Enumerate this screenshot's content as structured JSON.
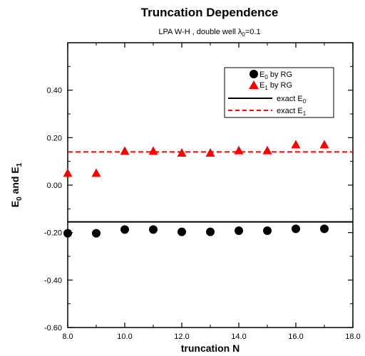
{
  "chart_data": {
    "type": "scatter",
    "title": "Truncation Dependence",
    "subtitle": {
      "prefix": "LPA W-H , double well λ",
      "sub": "0",
      "suffix": "=0.1"
    },
    "xlabel": "truncation N",
    "ylabel": {
      "a": "E",
      "a_sub": "0",
      "mid": " and E",
      "b_sub": "1"
    },
    "xlim": [
      8.0,
      18.0
    ],
    "ylim": [
      -0.6,
      0.6
    ],
    "xticks": [
      "8.0",
      "10.0",
      "12.0",
      "14.0",
      "16.0",
      "18.0"
    ],
    "yticks": [
      "-0.60",
      "-0.40",
      "-0.20",
      "0.00",
      "0.20",
      "0.40"
    ],
    "grid": false,
    "legend_position": "top-right",
    "series": [
      {
        "name": "E0 by RG",
        "legend": {
          "a": "E",
          "sub": "0",
          "rest": " by RG"
        },
        "marker": "circle",
        "color": "#000000",
        "x": [
          8,
          9,
          10,
          11,
          12,
          13,
          14,
          15,
          16,
          17
        ],
        "y": [
          -0.203,
          -0.203,
          -0.187,
          -0.187,
          -0.197,
          -0.197,
          -0.192,
          -0.192,
          -0.184,
          -0.184
        ]
      },
      {
        "name": "E1 by RG",
        "legend": {
          "a": "E",
          "sub": "1",
          "rest": " by RG"
        },
        "marker": "triangle",
        "color": "#ff0000",
        "x": [
          8,
          9,
          10,
          11,
          12,
          13,
          14,
          15,
          16,
          17
        ],
        "y": [
          0.05,
          0.05,
          0.143,
          0.143,
          0.135,
          0.135,
          0.145,
          0.145,
          0.17,
          0.17
        ]
      },
      {
        "name": "exact E0",
        "legend": {
          "a": "exact E",
          "sub": "0",
          "rest": ""
        },
        "style": "solid",
        "color": "#000000",
        "y": -0.155
      },
      {
        "name": "exact E1",
        "legend": {
          "a": "exact E",
          "sub": "1",
          "rest": ""
        },
        "style": "dashed",
        "color": "#ff0000",
        "y": 0.14
      }
    ]
  }
}
